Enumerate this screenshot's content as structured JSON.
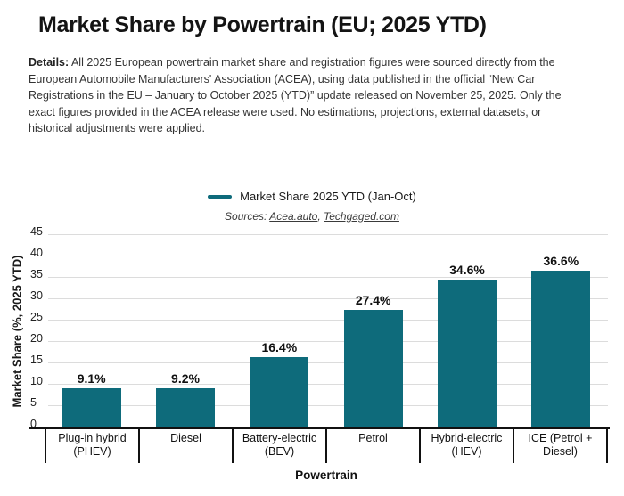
{
  "title": "Market Share by Powertrain (EU; 2025 YTD)",
  "details": {
    "label": "Details:",
    "text": "All 2025 European powertrain market share and registration figures were sourced directly from the European Automobile Manufacturers' Association (ACEA), using data published in the official “New Car Registrations in the EU – January to October 2025 (YTD)” update released on November 25, 2025. Only the exact figures provided in the ACEA release were used. No estimations, projections, external datasets, or historical adjustments were applied."
  },
  "legend": {
    "label": "Market Share 2025 YTD (Jan-Oct)",
    "marker_color": "#0e6b7b"
  },
  "sources": {
    "prefix": "Sources: ",
    "link1": "Acea.auto",
    "separator": ", ",
    "link2": "Techgaged.com"
  },
  "chart_data": {
    "type": "bar",
    "title": "Market Share by Powertrain (EU; 2025 YTD)",
    "series_name": "Market Share 2025 YTD (Jan-Oct)",
    "categories": [
      "Plug-in hybrid (PHEV)",
      "Diesel",
      "Battery-electric (BEV)",
      "Petrol",
      "Hybrid-electric (HEV)",
      "ICE (Petrol + Diesel)"
    ],
    "cat_lines": [
      [
        "Plug-in hybrid",
        "(PHEV)"
      ],
      [
        "Diesel"
      ],
      [
        "Battery-electric",
        "(BEV)"
      ],
      [
        "Petrol"
      ],
      [
        "Hybrid-electric",
        "(HEV)"
      ],
      [
        "ICE (Petrol +",
        "Diesel)"
      ]
    ],
    "values": [
      9.1,
      9.2,
      16.4,
      27.4,
      34.6,
      36.6
    ],
    "data_labels": [
      "9.1%",
      "9.2%",
      "16.4%",
      "27.4%",
      "34.6%",
      "36.6%"
    ],
    "xlabel": "Powertrain",
    "ylabel": "Market Share (%, 2025 YTD)",
    "ylim": [
      0,
      45
    ],
    "yticks": [
      0,
      5,
      10,
      15,
      20,
      25,
      30,
      35,
      40,
      45
    ],
    "bar_color": "#0e6b7b",
    "grid_color": "#dcdcdc",
    "grid": "horizontal",
    "legend_position": "top-center"
  }
}
